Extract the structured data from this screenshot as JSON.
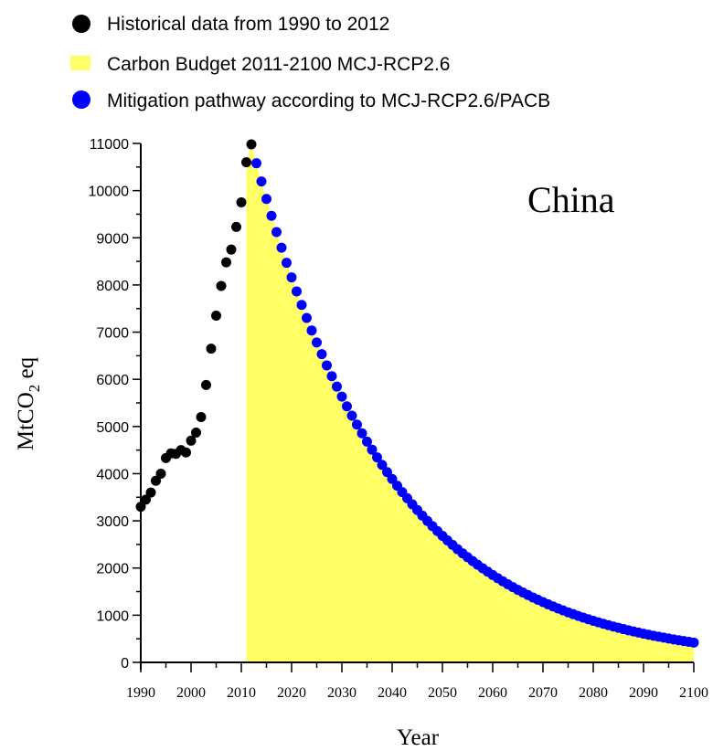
{
  "chart_data": {
    "type": "scatter",
    "panel_label": "China",
    "xlabel": "Year",
    "ylabel_main": "MtCO",
    "ylabel_sub": "2",
    "ylabel_suffix": " eq",
    "xlim": [
      1990,
      2100
    ],
    "ylim": [
      0,
      11000
    ],
    "x_ticks": [
      1990,
      2000,
      2010,
      2020,
      2030,
      2040,
      2050,
      2060,
      2070,
      2080,
      2090,
      2100
    ],
    "y_ticks": [
      0,
      1000,
      2000,
      3000,
      4000,
      5000,
      6000,
      7000,
      8000,
      9000,
      10000,
      11000
    ],
    "legend": [
      {
        "label": "Historical data from 1990 to 2012",
        "color": "#000000",
        "marker": "circle"
      },
      {
        "label": "Carbon Budget 2011-2100 MCJ-RCP2.6",
        "color": "#ffff66",
        "marker": "square"
      },
      {
        "label": "Mitigation pathway according to MCJ-RCP2.6/PACB",
        "color": "#0000ff",
        "marker": "circle"
      }
    ],
    "series": [
      {
        "name": "Historical data from 1990 to 2012",
        "color": "#000000",
        "x": [
          1990,
          1991,
          1992,
          1993,
          1994,
          1995,
          1996,
          1997,
          1998,
          1999,
          2000,
          2001,
          2002,
          2003,
          2004,
          2005,
          2006,
          2007,
          2008,
          2009,
          2010,
          2011,
          2012
        ],
        "y": [
          3300,
          3450,
          3600,
          3850,
          4000,
          4330,
          4430,
          4420,
          4500,
          4450,
          4700,
          4870,
          5200,
          5880,
          6650,
          7350,
          7980,
          8480,
          8750,
          9230,
          9750,
          10600,
          10980
        ]
      },
      {
        "name": "Carbon Budget 2011-2100 MCJ-RCP2.6",
        "color": "#ffff66",
        "type": "area",
        "start": 2011,
        "end": 2100
      },
      {
        "name": "Mitigation pathway according to MCJ-RCP2.6/PACB",
        "color": "#0000ff",
        "x_start": 2013,
        "x_end": 2100,
        "y_start": 10580,
        "y_end": 420
      }
    ]
  }
}
